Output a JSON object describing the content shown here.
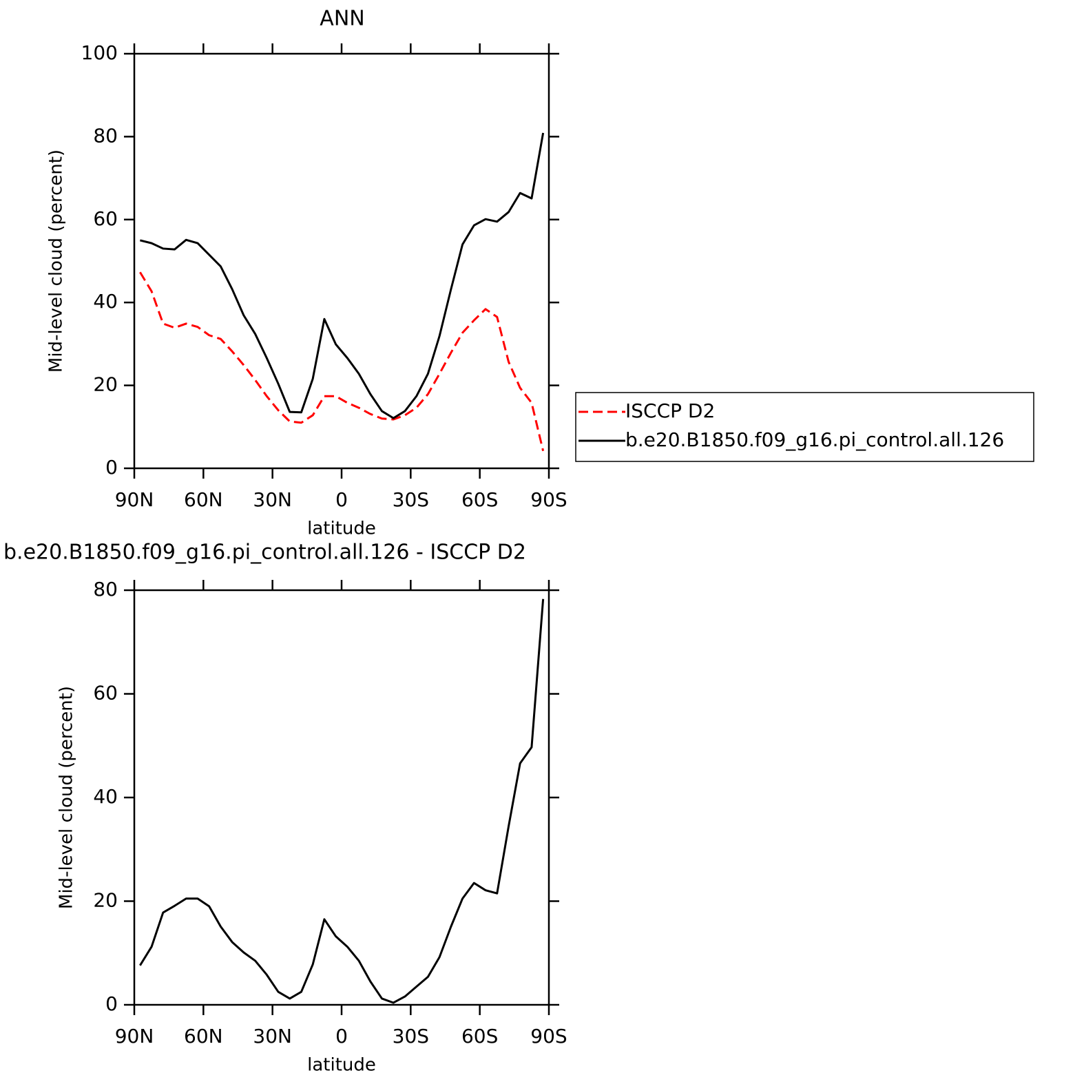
{
  "chart_data": [
    {
      "type": "line",
      "title": "ANN",
      "x_label": "latitude",
      "y_label": "Mid-level cloud (percent)",
      "x": [
        87.5,
        82.5,
        77.5,
        72.5,
        67.5,
        62.5,
        57.5,
        52.5,
        47.5,
        42.5,
        37.5,
        32.5,
        27.5,
        22.5,
        17.5,
        12.5,
        7.5,
        2.5,
        -2.5,
        -7.5,
        -12.5,
        -17.5,
        -22.5,
        -27.5,
        -32.5,
        -37.5,
        -42.5,
        -47.5,
        -52.5,
        -57.5,
        -62.5,
        -67.5,
        -72.5,
        -77.5,
        -82.5,
        -87.5
      ],
      "series": [
        {
          "name": "ISCCP D2",
          "color": "#ff0000",
          "dashed": true,
          "values": [
            47.3,
            42.7,
            34.9,
            33.9,
            34.9,
            34.1,
            32.1,
            31.2,
            28.2,
            24.9,
            21.3,
            17.4,
            14.0,
            11.3,
            11.0,
            12.8,
            17.4,
            17.4,
            15.8,
            14.6,
            13.1,
            12.0,
            11.8,
            12.8,
            14.6,
            17.9,
            22.8,
            27.9,
            32.7,
            35.7,
            38.4,
            36.5,
            25.7,
            19.4,
            15.8,
            4.2
          ]
        },
        {
          "name": "b.e20.B1850.f09_g16.pi_control.all.126",
          "color": "#000000",
          "dashed": false,
          "values": [
            55.0,
            54.3,
            53.0,
            52.8,
            55.1,
            54.3,
            51.5,
            48.7,
            43.2,
            36.9,
            32.4,
            26.6,
            20.4,
            13.6,
            13.5,
            21.6,
            36.0,
            29.9,
            26.6,
            22.8,
            17.9,
            13.8,
            12.1,
            13.8,
            17.4,
            22.8,
            31.9,
            43.2,
            54.0,
            58.6,
            60.1,
            59.5,
            61.8,
            66.4,
            65.1,
            80.9
          ]
        }
      ],
      "xlim": [
        90,
        -90
      ],
      "xticks": [
        {
          "value": 90,
          "label": "90N"
        },
        {
          "value": 60,
          "label": "60N"
        },
        {
          "value": 30,
          "label": "30N"
        },
        0,
        {
          "value": -30,
          "label": "30S"
        },
        {
          "value": -60,
          "label": "60S"
        },
        {
          "value": -90,
          "label": "90S"
        }
      ],
      "ylim": [
        0,
        100
      ],
      "yticks": [
        0,
        20,
        40,
        60,
        80,
        100
      ],
      "legend": "right"
    },
    {
      "type": "line",
      "title": "b.e20.B1850.f09_g16.pi_control.all.126 - ISCCP D2",
      "x_label": "latitude",
      "y_label": "Mid-level cloud (percent)",
      "x": [
        87.5,
        82.5,
        77.5,
        72.5,
        67.5,
        62.5,
        57.5,
        52.5,
        47.5,
        42.5,
        37.5,
        32.5,
        27.5,
        22.5,
        17.5,
        12.5,
        7.5,
        2.5,
        -2.5,
        -7.5,
        -12.5,
        -17.5,
        -22.5,
        -27.5,
        -32.5,
        -37.5,
        -42.5,
        -47.5,
        -52.5,
        -57.5,
        -62.5,
        -67.5,
        -72.5,
        -77.5,
        -82.5,
        -87.5
      ],
      "series": [
        {
          "color": "#000000",
          "dashed": false,
          "values": [
            7.6,
            11.2,
            17.8,
            19.1,
            20.5,
            20.5,
            19.0,
            15.1,
            12.1,
            10.1,
            8.5,
            5.8,
            2.5,
            1.2,
            2.5,
            7.8,
            16.5,
            13.2,
            11.2,
            8.5,
            4.5,
            1.2,
            0.4,
            1.6,
            3.5,
            5.4,
            9.2,
            15.1,
            20.5,
            23.5,
            22.1,
            21.5,
            34.4,
            46.6,
            49.7,
            78.3
          ]
        }
      ],
      "xlim": [
        90,
        -90
      ],
      "xticks": [
        {
          "value": 90,
          "label": "90N"
        },
        {
          "value": 60,
          "label": "60N"
        },
        {
          "value": 30,
          "label": "30N"
        },
        0,
        {
          "value": -30,
          "label": "30S"
        },
        {
          "value": -60,
          "label": "60S"
        },
        {
          "value": -90,
          "label": "90S"
        }
      ],
      "ylim": [
        0,
        80
      ],
      "yticks": [
        0,
        20,
        40,
        60,
        80
      ]
    }
  ]
}
